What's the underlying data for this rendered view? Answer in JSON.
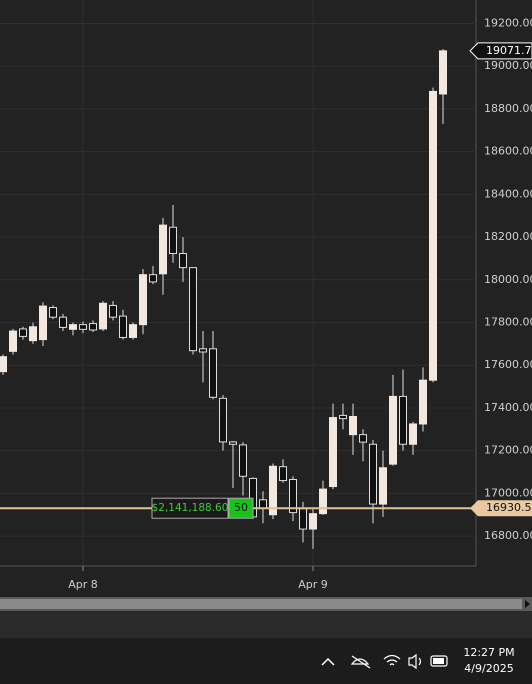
{
  "chart_data": {
    "type": "candlestick",
    "open": [
      17570,
      17665,
      17770,
      17715,
      17720,
      17870,
      17825,
      17768,
      17790,
      17795,
      17770,
      17880,
      17830,
      17730,
      17790,
      18024,
      18028,
      18246,
      18123,
      18057,
      17677,
      17677,
      17445,
      17241,
      17227,
      17070,
      16970,
      16900,
      17125,
      17065,
      16928,
      16833,
      16905,
      17032,
      17365,
      17275,
      17275,
      17230,
      16950,
      17137,
      17454,
      17230,
      17325,
      17530,
      18870
    ],
    "high": [
      17650,
      17770,
      17780,
      17800,
      17895,
      17880,
      17840,
      17800,
      17805,
      17810,
      17900,
      17900,
      17860,
      17800,
      18050,
      18065,
      18290,
      18350,
      18200,
      18060,
      17760,
      17760,
      17460,
      17245,
      17240,
      17075,
      17010,
      17140,
      17160,
      17080,
      16960,
      16930,
      17060,
      17420,
      17420,
      17420,
      17300,
      17250,
      17200,
      17555,
      17580,
      17335,
      17590,
      18900,
      19080
    ],
    "low": [
      17555,
      17650,
      17720,
      17700,
      17690,
      17815,
      17760,
      17740,
      17750,
      17755,
      17760,
      17810,
      17720,
      17720,
      17745,
      17980,
      17930,
      18080,
      17990,
      17650,
      17520,
      17440,
      17200,
      17025,
      16990,
      16880,
      16860,
      16880,
      17050,
      16870,
      16770,
      16740,
      16900,
      17020,
      17300,
      17180,
      17150,
      16860,
      16890,
      17130,
      17200,
      17180,
      17290,
      17520,
      18730
    ],
    "close": [
      17640,
      17760,
      17735,
      17780,
      17877,
      17825,
      17777,
      17790,
      17768,
      17765,
      17890,
      17825,
      17730,
      17790,
      18024,
      17990,
      18256,
      18123,
      18057,
      17668,
      17662,
      17450,
      17241,
      17230,
      17080,
      16890,
      16930,
      17127,
      17060,
      16910,
      16833,
      16905,
      17020,
      17355,
      17350,
      17360,
      17240,
      16950,
      17120,
      17454,
      17230,
      17325,
      17530,
      18882,
      19072
    ],
    "up_color": "#f2e8df",
    "down_color": "#111111",
    "ylim": [
      16660,
      19310
    ],
    "yticks": [
      {
        "value": 16800,
        "label": "16800.00"
      },
      {
        "value": 17000,
        "label": "17000.00"
      },
      {
        "value": 17200,
        "label": "17200.00"
      },
      {
        "value": 17400,
        "label": "17400.00"
      },
      {
        "value": 17600,
        "label": "17600.00"
      },
      {
        "value": 17800,
        "label": "17800.00"
      },
      {
        "value": 18000,
        "label": "18000.00"
      },
      {
        "value": 18200,
        "label": "18200.00"
      },
      {
        "value": 18400,
        "label": "18400.00"
      },
      {
        "value": 18600,
        "label": "18600.00"
      },
      {
        "value": 18800,
        "label": "18800.00"
      },
      {
        "value": 19000,
        "label": "19000.00"
      },
      {
        "value": 19200,
        "label": "19200.00"
      }
    ],
    "xlim": [
      -0.3,
      47.3
    ],
    "xticks": [
      {
        "value": 8,
        "label": "Apr 8"
      },
      {
        "value": 31,
        "label": "Apr 9"
      }
    ],
    "grid": true,
    "last_price": 19071.75,
    "price_line": {
      "value": 16930.5,
      "label": "16930.50"
    },
    "position": {
      "pnl": "$2,141,188.60",
      "qty": 50
    }
  },
  "taskbar": {
    "time": "12:27 PM",
    "date": "4/9/2025"
  }
}
